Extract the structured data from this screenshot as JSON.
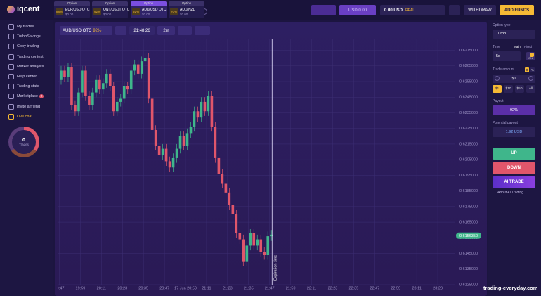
{
  "header": {
    "logo": "iqcent",
    "tabs": [
      {
        "type": "Option",
        "payout": "88%",
        "pair": "EUR/USD OTC",
        "amount": "$0.00"
      },
      {
        "type": "Option",
        "payout": "92%",
        "pair": "QNT/USDT OTC",
        "amount": "$0.00"
      },
      {
        "type": "Option",
        "payout": "92%",
        "pair": "AUD/USD OTC",
        "amount": "$0.00"
      },
      {
        "type": "Option",
        "payout": "70%",
        "pair": "AUD/NZD",
        "amount": "$0.00"
      }
    ],
    "demo_balance": "USD 0.00",
    "account": {
      "balance": "0.00 USD",
      "mode": "REAL"
    },
    "withdraw": "WITHDRAW",
    "add_funds": "ADD FUNDS"
  },
  "sidebar": {
    "items": [
      "My trades",
      "TurboSavings",
      "Copy trading",
      "Trading contest",
      "Market analysis",
      "Help center",
      "Trading stats",
      "Marketplace",
      "Invite a friend",
      "Live chat"
    ],
    "marketplace_badge": 2,
    "trades": {
      "count": 0,
      "label": "Trades"
    }
  },
  "toolbar": {
    "asset": "AUD/USD OTC",
    "asset_payout": "92%",
    "time": "21:48:26",
    "timeframe": "2m"
  },
  "chart_data": {
    "type": "candlestick",
    "expiration_label": "Expiration time",
    "up_color": "#3fb68b",
    "down_color": "#e0566b",
    "grid": true,
    "xlim": [
      "19:46",
      "23:33"
    ],
    "xticks": [
      "19:47",
      "19:59",
      "20:11",
      "20:23",
      "20:35",
      "20:47",
      {
        "value": "20:59",
        "label": "17 Jun 20:59"
      },
      "21:11",
      "21:23",
      "21:35",
      "21:47",
      "21:59",
      "22:11",
      "22:23",
      "22:35",
      "22:47",
      "22:59",
      "23:11",
      "23:23"
    ],
    "ylim": [
      0.6125,
      0.6282
    ],
    "yticks": [
      {
        "value": 0.6125,
        "label": "0.6125000"
      },
      {
        "value": 0.6135,
        "label": "0.6135000"
      },
      {
        "value": 0.6145,
        "label": "0.6145000"
      },
      {
        "value": 0.6155,
        "label": "0.6155000"
      },
      {
        "value": 0.6165,
        "label": "0.6165000"
      },
      {
        "value": 0.6175,
        "label": "0.6175000"
      },
      {
        "value": 0.6185,
        "label": "0.6185000"
      },
      {
        "value": 0.6195,
        "label": "0.6195000"
      },
      {
        "value": 0.6205,
        "label": "0.6205000"
      },
      {
        "value": 0.6215,
        "label": "0.6215000"
      },
      {
        "value": 0.6225,
        "label": "0.6225000"
      },
      {
        "value": 0.6235,
        "label": "0.6235000"
      },
      {
        "value": 0.6245,
        "label": "0.6245000"
      },
      {
        "value": 0.6255,
        "label": "0.6255000"
      },
      {
        "value": 0.6265,
        "label": "0.6265000"
      },
      {
        "value": 0.6275,
        "label": "0.6275000"
      }
    ],
    "current_price": {
      "value": 0.615635,
      "label": "0.6156350"
    },
    "x": [
      "19:48",
      "19:50",
      "19:52",
      "19:54",
      "19:56",
      "19:58",
      "20:00",
      "20:02",
      "20:04",
      "20:06",
      "20:08",
      "20:10",
      "20:12",
      "20:14",
      "20:16",
      "20:18",
      "20:20",
      "20:22",
      "20:24",
      "20:26",
      "20:28",
      "20:30",
      "20:32",
      "20:34",
      "20:36",
      "20:38",
      "20:40",
      "20:42",
      "20:44",
      "20:46",
      "20:48",
      "20:50",
      "20:52",
      "20:54",
      "20:56",
      "20:58",
      "21:00",
      "21:02",
      "21:04",
      "21:06",
      "21:08",
      "21:10",
      "21:12",
      "21:14",
      "21:16",
      "21:18",
      "21:20",
      "21:22",
      "21:24",
      "21:26",
      "21:28",
      "21:30",
      "21:32",
      "21:34",
      "21:36",
      "21:38",
      "21:40",
      "21:42",
      "21:44",
      "21:46",
      "21:48"
    ],
    "open": [
      0.6256,
      0.6262,
      0.6258,
      0.6264,
      0.624,
      0.6236,
      0.6248,
      0.6262,
      0.6246,
      0.624,
      0.6248,
      0.6256,
      0.625,
      0.6254,
      0.626,
      0.6252,
      0.6236,
      0.6242,
      0.6244,
      0.6252,
      0.625,
      0.6262,
      0.6266,
      0.626,
      0.6268,
      0.627,
      0.6244,
      0.6224,
      0.6214,
      0.6208,
      0.6212,
      0.6204,
      0.62,
      0.6206,
      0.6212,
      0.622,
      0.6214,
      0.6222,
      0.6226,
      0.6236,
      0.6232,
      0.6242,
      0.6236,
      0.6246,
      0.6226,
      0.6206,
      0.6196,
      0.619,
      0.6184,
      0.6176,
      0.617,
      0.6158,
      0.6154,
      0.614,
      0.615,
      0.6158,
      0.615,
      0.6154,
      0.6146,
      0.6144,
      0.6156
    ],
    "high": [
      0.6265,
      0.6265,
      0.6267,
      0.6267,
      0.6243,
      0.6251,
      0.6265,
      0.6265,
      0.6249,
      0.6251,
      0.6259,
      0.6259,
      0.6257,
      0.6263,
      0.6263,
      0.6255,
      0.6245,
      0.6247,
      0.6255,
      0.6255,
      0.6265,
      0.6269,
      0.6269,
      0.6271,
      0.6273,
      0.6273,
      0.6247,
      0.6227,
      0.6217,
      0.6215,
      0.6215,
      0.6207,
      0.6209,
      0.6215,
      0.6223,
      0.6223,
      0.6225,
      0.6229,
      0.6239,
      0.6239,
      0.6245,
      0.6245,
      0.6249,
      0.6249,
      0.6229,
      0.6209,
      0.6199,
      0.6193,
      0.6187,
      0.6179,
      0.6173,
      0.6161,
      0.6157,
      0.6153,
      0.6161,
      0.6161,
      0.6157,
      0.6157,
      0.6149,
      0.6159,
      0.616
    ],
    "low": [
      0.6253,
      0.6255,
      0.6255,
      0.6237,
      0.6233,
      0.6233,
      0.6245,
      0.6243,
      0.6237,
      0.6237,
      0.6245,
      0.6247,
      0.6247,
      0.6251,
      0.6249,
      0.6233,
      0.6233,
      0.6239,
      0.6241,
      0.6247,
      0.6247,
      0.6259,
      0.6257,
      0.6257,
      0.6265,
      0.6241,
      0.6221,
      0.6211,
      0.6205,
      0.6205,
      0.6201,
      0.6197,
      0.6197,
      0.6203,
      0.6209,
      0.6211,
      0.6211,
      0.6219,
      0.6223,
      0.6229,
      0.6229,
      0.6233,
      0.6233,
      0.6223,
      0.6203,
      0.6193,
      0.6187,
      0.6181,
      0.6173,
      0.6167,
      0.6155,
      0.6151,
      0.6137,
      0.6137,
      0.6147,
      0.6147,
      0.6147,
      0.6143,
      0.6141,
      0.6141,
      0.6153
    ],
    "close": [
      0.6262,
      0.6258,
      0.6264,
      0.624,
      0.6236,
      0.6248,
      0.6262,
      0.6246,
      0.624,
      0.6248,
      0.6256,
      0.625,
      0.6254,
      0.626,
      0.6252,
      0.6236,
      0.6242,
      0.6244,
      0.6252,
      0.625,
      0.6262,
      0.6266,
      0.626,
      0.6268,
      0.627,
      0.6244,
      0.6224,
      0.6214,
      0.6208,
      0.6212,
      0.6204,
      0.62,
      0.6206,
      0.6212,
      0.622,
      0.6214,
      0.6222,
      0.6226,
      0.6236,
      0.6232,
      0.6242,
      0.6236,
      0.6246,
      0.6226,
      0.6206,
      0.6196,
      0.619,
      0.6184,
      0.6176,
      0.617,
      0.6158,
      0.6154,
      0.614,
      0.615,
      0.6158,
      0.615,
      0.6154,
      0.6146,
      0.6144,
      0.6156,
      0.6157
    ]
  },
  "trade_panel": {
    "option_type_label": "Option type",
    "option_type": "Turbo",
    "time_label": "Time",
    "time_modes": [
      "Main",
      "Fixed"
    ],
    "time": "5s",
    "toggle": "ON",
    "amount_label": "Trade amount",
    "amount_units": [
      "$",
      "%"
    ],
    "amount": "$1",
    "quick_amounts": [
      "$1",
      "$10",
      "$50",
      "All"
    ],
    "payout_label": "Payout",
    "payout": "92%",
    "potential_label": "Potential payout",
    "potential": "1.92 USD",
    "up": "UP",
    "down": "DOWN",
    "ai_trade": "AI TRADE",
    "about_ai": "About AI Trading"
  },
  "watermark": "trading-everyday.com"
}
